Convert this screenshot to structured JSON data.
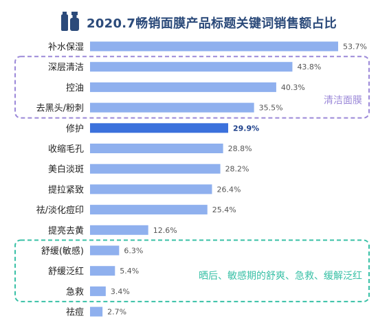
{
  "title": "2020.7畅销面膜产品标题关键词销售额占比",
  "colors": {
    "bar": "#8fb0ee",
    "bar_highlight": "#3b71dc",
    "title": "#2b4a7a",
    "group_cleansing": "#9b88d8",
    "group_soothing": "#38c0a6"
  },
  "icons": {
    "title": "bottle-icon"
  },
  "groups": [
    {
      "label": "清洁面膜",
      "members": [
        "深层清洁",
        "控油",
        "去黑头/粉刺"
      ]
    },
    {
      "label": "晒后、敏感期的舒爽、急救、缓解泛红",
      "members": [
        "舒缓(敏感)",
        "舒缓泛红",
        "急救"
      ]
    }
  ],
  "chart_data": {
    "type": "bar",
    "orientation": "horizontal",
    "title": "2020.7畅销面膜产品标题关键词销售额占比",
    "categories": [
      "补水保湿",
      "深层清洁",
      "控油",
      "去黑头/粉刺",
      "修护",
      "收缩毛孔",
      "美白淡斑",
      "提拉紧致",
      "祛/淡化痘印",
      "提亮去黄",
      "舒缓(敏感)",
      "舒缓泛红",
      "急救",
      "祛痘"
    ],
    "values": [
      53.7,
      43.8,
      40.3,
      35.5,
      29.9,
      28.8,
      28.2,
      26.4,
      25.4,
      12.6,
      6.3,
      5.4,
      3.4,
      2.7
    ],
    "value_labels": [
      "53.7%",
      "43.8%",
      "40.3%",
      "35.5%",
      "29.9%",
      "28.8%",
      "28.2%",
      "26.4%",
      "25.4%",
      "12.6%",
      "6.3%",
      "5.4%",
      "3.4%",
      "2.7%"
    ],
    "highlighted": "修护",
    "unit": "%",
    "xlim": [
      0,
      53.7
    ],
    "grid": false,
    "legend": "none"
  }
}
